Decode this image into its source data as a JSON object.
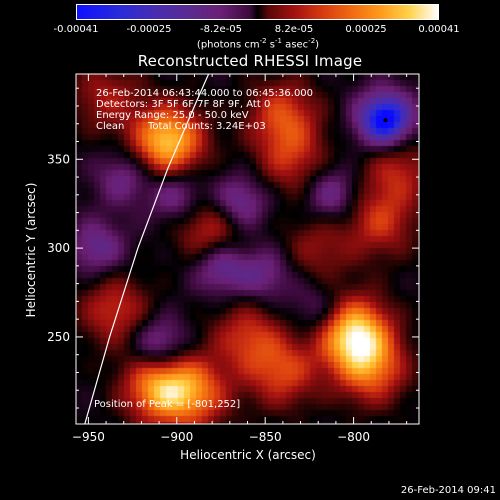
{
  "colorbar": {
    "ticks": [
      "-0.00041",
      "-0.00025",
      "-8.2e-05",
      "8.2e-05",
      "0.00025",
      "0.00041"
    ],
    "unit_prefix": "(photons cm",
    "unit_exp1": "-2",
    "unit_mid": " s",
    "unit_exp2": "-1",
    "unit_mid2": " asec",
    "unit_exp3": "-2",
    "unit_suffix": ")"
  },
  "title": "Reconstructed RHESSI Image",
  "annotations": {
    "time_range": "26-Feb-2014 06:43:44.000 to 06:45:36.000",
    "detectors": "Detectors: 3F 5F 6F 7F 8F 9F, Att 0",
    "energy": "Energy Range: 25.0 - 50.0 keV",
    "clean": "Clean",
    "total_counts": "Total Counts: 3.24E+03",
    "peak": "Position of Peak = [-801,252]"
  },
  "timestamp": "26-Feb-2014 09:41",
  "chart_data": {
    "type": "heatmap",
    "title": "Reconstructed RHESSI Image",
    "xlabel": "Heliocentric X (arcsec)",
    "ylabel": "Heliocentric Y (arcsec)",
    "xlim": [
      -957,
      -763
    ],
    "ylim": [
      201,
      398
    ],
    "xticks": [
      -950,
      -900,
      -850,
      -800
    ],
    "xtick_labels": [
      "−950",
      "−900",
      "−850",
      "−800"
    ],
    "yticks": [
      250,
      300,
      350
    ],
    "ytick_labels": [
      "250",
      "300",
      "350"
    ],
    "color_range": [
      -0.00041,
      0.00041
    ],
    "colormap": [
      "#0a0aff",
      "#2b2bd8",
      "#4a2cb0",
      "#5c2a8e",
      "#6a1f74",
      "#3c0a3c",
      "#000000",
      "#5a0808",
      "#a01010",
      "#d83a10",
      "#f06a10",
      "#ff9a1a",
      "#ffd24a",
      "#ffffff"
    ],
    "peak_position": [
      -801,
      252
    ],
    "limb_line": [
      [
        -952,
        201
      ],
      [
        -938,
        250
      ],
      [
        -922,
        300
      ],
      [
        -905,
        345
      ],
      [
        -890,
        380
      ],
      [
        -882,
        398
      ]
    ],
    "bright_sources": [
      {
        "x": -905,
        "y": 360,
        "level": 0.95
      },
      {
        "x": -800,
        "y": 252,
        "level": 1.0
      },
      {
        "x": -790,
        "y": 232,
        "level": 0.6
      },
      {
        "x": -910,
        "y": 222,
        "level": 0.8
      },
      {
        "x": -890,
        "y": 218,
        "level": 0.6
      },
      {
        "x": -840,
        "y": 230,
        "level": 0.5
      },
      {
        "x": -880,
        "y": 310,
        "level": 0.5
      },
      {
        "x": -860,
        "y": 250,
        "level": 0.45
      },
      {
        "x": -935,
        "y": 265,
        "level": 0.45
      },
      {
        "x": -785,
        "y": 315,
        "level": 0.45
      },
      {
        "x": -775,
        "y": 345,
        "level": 0.4
      },
      {
        "x": -835,
        "y": 350,
        "level": 0.4
      },
      {
        "x": -840,
        "y": 375,
        "level": 0.5
      },
      {
        "x": -940,
        "y": 385,
        "level": 0.35
      },
      {
        "x": -820,
        "y": 300,
        "level": 0.3
      }
    ],
    "dark_sources": [
      {
        "x": -782,
        "y": 372,
        "level": 1.0
      },
      {
        "x": -910,
        "y": 245,
        "level": 0.5
      },
      {
        "x": -875,
        "y": 290,
        "level": 0.5
      },
      {
        "x": -865,
        "y": 325,
        "level": 0.5
      },
      {
        "x": -900,
        "y": 330,
        "level": 0.4
      },
      {
        "x": -945,
        "y": 300,
        "level": 0.4
      },
      {
        "x": -812,
        "y": 330,
        "level": 0.4
      },
      {
        "x": -850,
        "y": 285,
        "level": 0.35
      },
      {
        "x": -930,
        "y": 340,
        "level": 0.35
      },
      {
        "x": -820,
        "y": 265,
        "level": 0.3
      }
    ]
  }
}
